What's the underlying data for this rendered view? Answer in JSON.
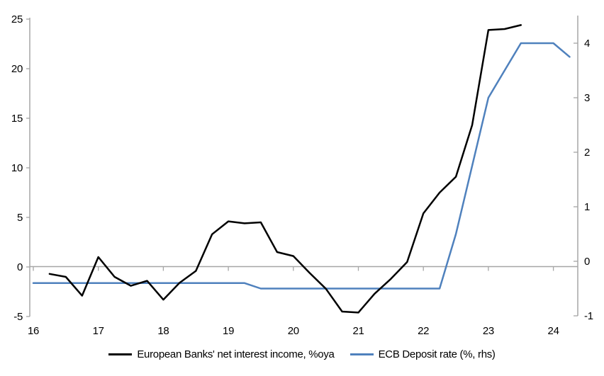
{
  "chart_data": {
    "type": "line",
    "title": "",
    "xlabel": "",
    "ylabel_left": "",
    "ylabel_right": "",
    "x_axis": {
      "ticks": [
        16,
        17,
        18,
        19,
        20,
        21,
        22,
        23,
        24
      ],
      "min": 16,
      "max": 24.4
    },
    "left_axis": {
      "min": -5,
      "max": 25,
      "ticks": [
        25,
        20,
        15,
        10,
        5,
        0,
        -5
      ]
    },
    "right_axis": {
      "min": -1,
      "max": 4.5,
      "ticks": [
        4,
        3,
        2,
        1,
        0,
        -1
      ]
    },
    "grid": "zero-line-only",
    "legend_position": "bottom",
    "series": [
      {
        "name": "European Banks' net interest income, %oya",
        "axis": "left",
        "color": "#000000",
        "x": [
          16.25,
          16.5,
          16.75,
          17.0,
          17.25,
          17.5,
          17.75,
          18.0,
          18.25,
          18.5,
          18.75,
          19.0,
          19.25,
          19.5,
          19.75,
          20.0,
          20.25,
          20.5,
          20.75,
          21.0,
          21.25,
          21.5,
          21.75,
          22.0,
          22.25,
          22.5,
          22.75,
          23.0,
          23.25,
          23.5
        ],
        "values": [
          -0.7,
          -1.0,
          -2.9,
          1.0,
          -1.0,
          -1.9,
          -1.4,
          -3.3,
          -1.6,
          -0.4,
          3.3,
          4.6,
          4.4,
          4.5,
          1.5,
          1.1,
          -0.6,
          -2.2,
          -4.5,
          -4.6,
          -2.7,
          -1.2,
          0.5,
          5.4,
          7.5,
          9.1,
          14.3,
          23.9,
          24.0,
          24.4
        ]
      },
      {
        "name": "ECB Deposit rate (%, rhs)",
        "axis": "right",
        "color": "#4f81bd",
        "x": [
          16.0,
          16.25,
          16.5,
          16.75,
          17.0,
          17.25,
          17.5,
          17.75,
          18.0,
          18.25,
          18.5,
          18.75,
          19.0,
          19.25,
          19.5,
          19.75,
          20.0,
          20.25,
          20.5,
          20.75,
          21.0,
          21.25,
          21.5,
          21.75,
          22.0,
          22.25,
          22.5,
          22.75,
          23.0,
          23.25,
          23.5,
          23.75,
          24.0,
          24.25
        ],
        "values": [
          -0.4,
          -0.4,
          -0.4,
          -0.4,
          -0.4,
          -0.4,
          -0.4,
          -0.4,
          -0.4,
          -0.4,
          -0.4,
          -0.4,
          -0.4,
          -0.4,
          -0.5,
          -0.5,
          -0.5,
          -0.5,
          -0.5,
          -0.5,
          -0.5,
          -0.5,
          -0.5,
          -0.5,
          -0.5,
          -0.5,
          0.5,
          1.75,
          3.0,
          3.5,
          4.0,
          4.0,
          4.0,
          3.75
        ]
      }
    ]
  },
  "colors": {
    "background": "#ffffff",
    "axis_line": "#a6a6a6",
    "zero_line": "#a6a6a6",
    "text": "#000000",
    "series_black": "#000000",
    "series_blue": "#4f81bd"
  }
}
